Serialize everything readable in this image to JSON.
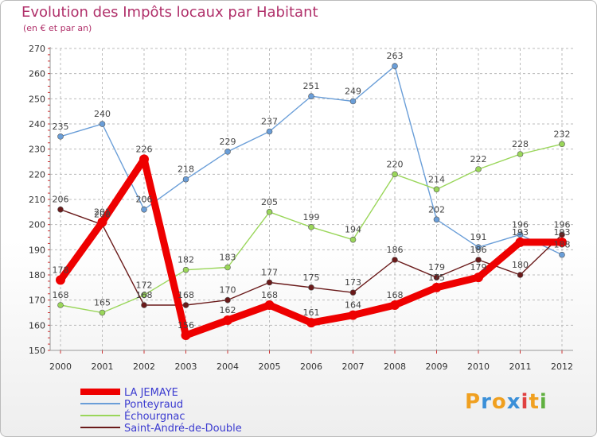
{
  "header": {
    "title": "Evolution des Impôts locaux par Habitant",
    "subtitle": "(en € et par an)"
  },
  "logo": {
    "text": "Proxiti"
  },
  "chart_data": {
    "type": "line",
    "title": "Evolution des Impôts locaux par Habitant",
    "subtitle": "(en € et par an)",
    "xlabel": "",
    "ylabel": "",
    "categories": [
      "2000",
      "2001",
      "2002",
      "2003",
      "2004",
      "2005",
      "2006",
      "2007",
      "2008",
      "2009",
      "2010",
      "2011",
      "2012"
    ],
    "ylim": [
      150,
      270
    ],
    "yticks": [
      150,
      160,
      170,
      180,
      190,
      200,
      210,
      220,
      230,
      240,
      250,
      260,
      270
    ],
    "grid": true,
    "legend_position": "bottom-left",
    "series": [
      {
        "name": "LA JEMAYE",
        "color": "#ee0000",
        "values": [
          178,
          201,
          226,
          156,
          162,
          168,
          161,
          164,
          168,
          175,
          179,
          193,
          193
        ]
      },
      {
        "name": "Ponteyraud",
        "color": "#6a9ed8",
        "values": [
          235,
          240,
          206,
          218,
          229,
          237,
          251,
          249,
          263,
          202,
          191,
          196,
          188
        ]
      },
      {
        "name": "Échourgnac",
        "color": "#9ad65a",
        "values": [
          168,
          165,
          172,
          182,
          183,
          205,
          199,
          194,
          220,
          214,
          222,
          228,
          232
        ]
      },
      {
        "name": "Saint-André-de-Double",
        "color": "#6a1a1a",
        "values": [
          206,
          200,
          168,
          168,
          170,
          177,
          175,
          173,
          186,
          179,
          186,
          180,
          196
        ]
      }
    ]
  }
}
